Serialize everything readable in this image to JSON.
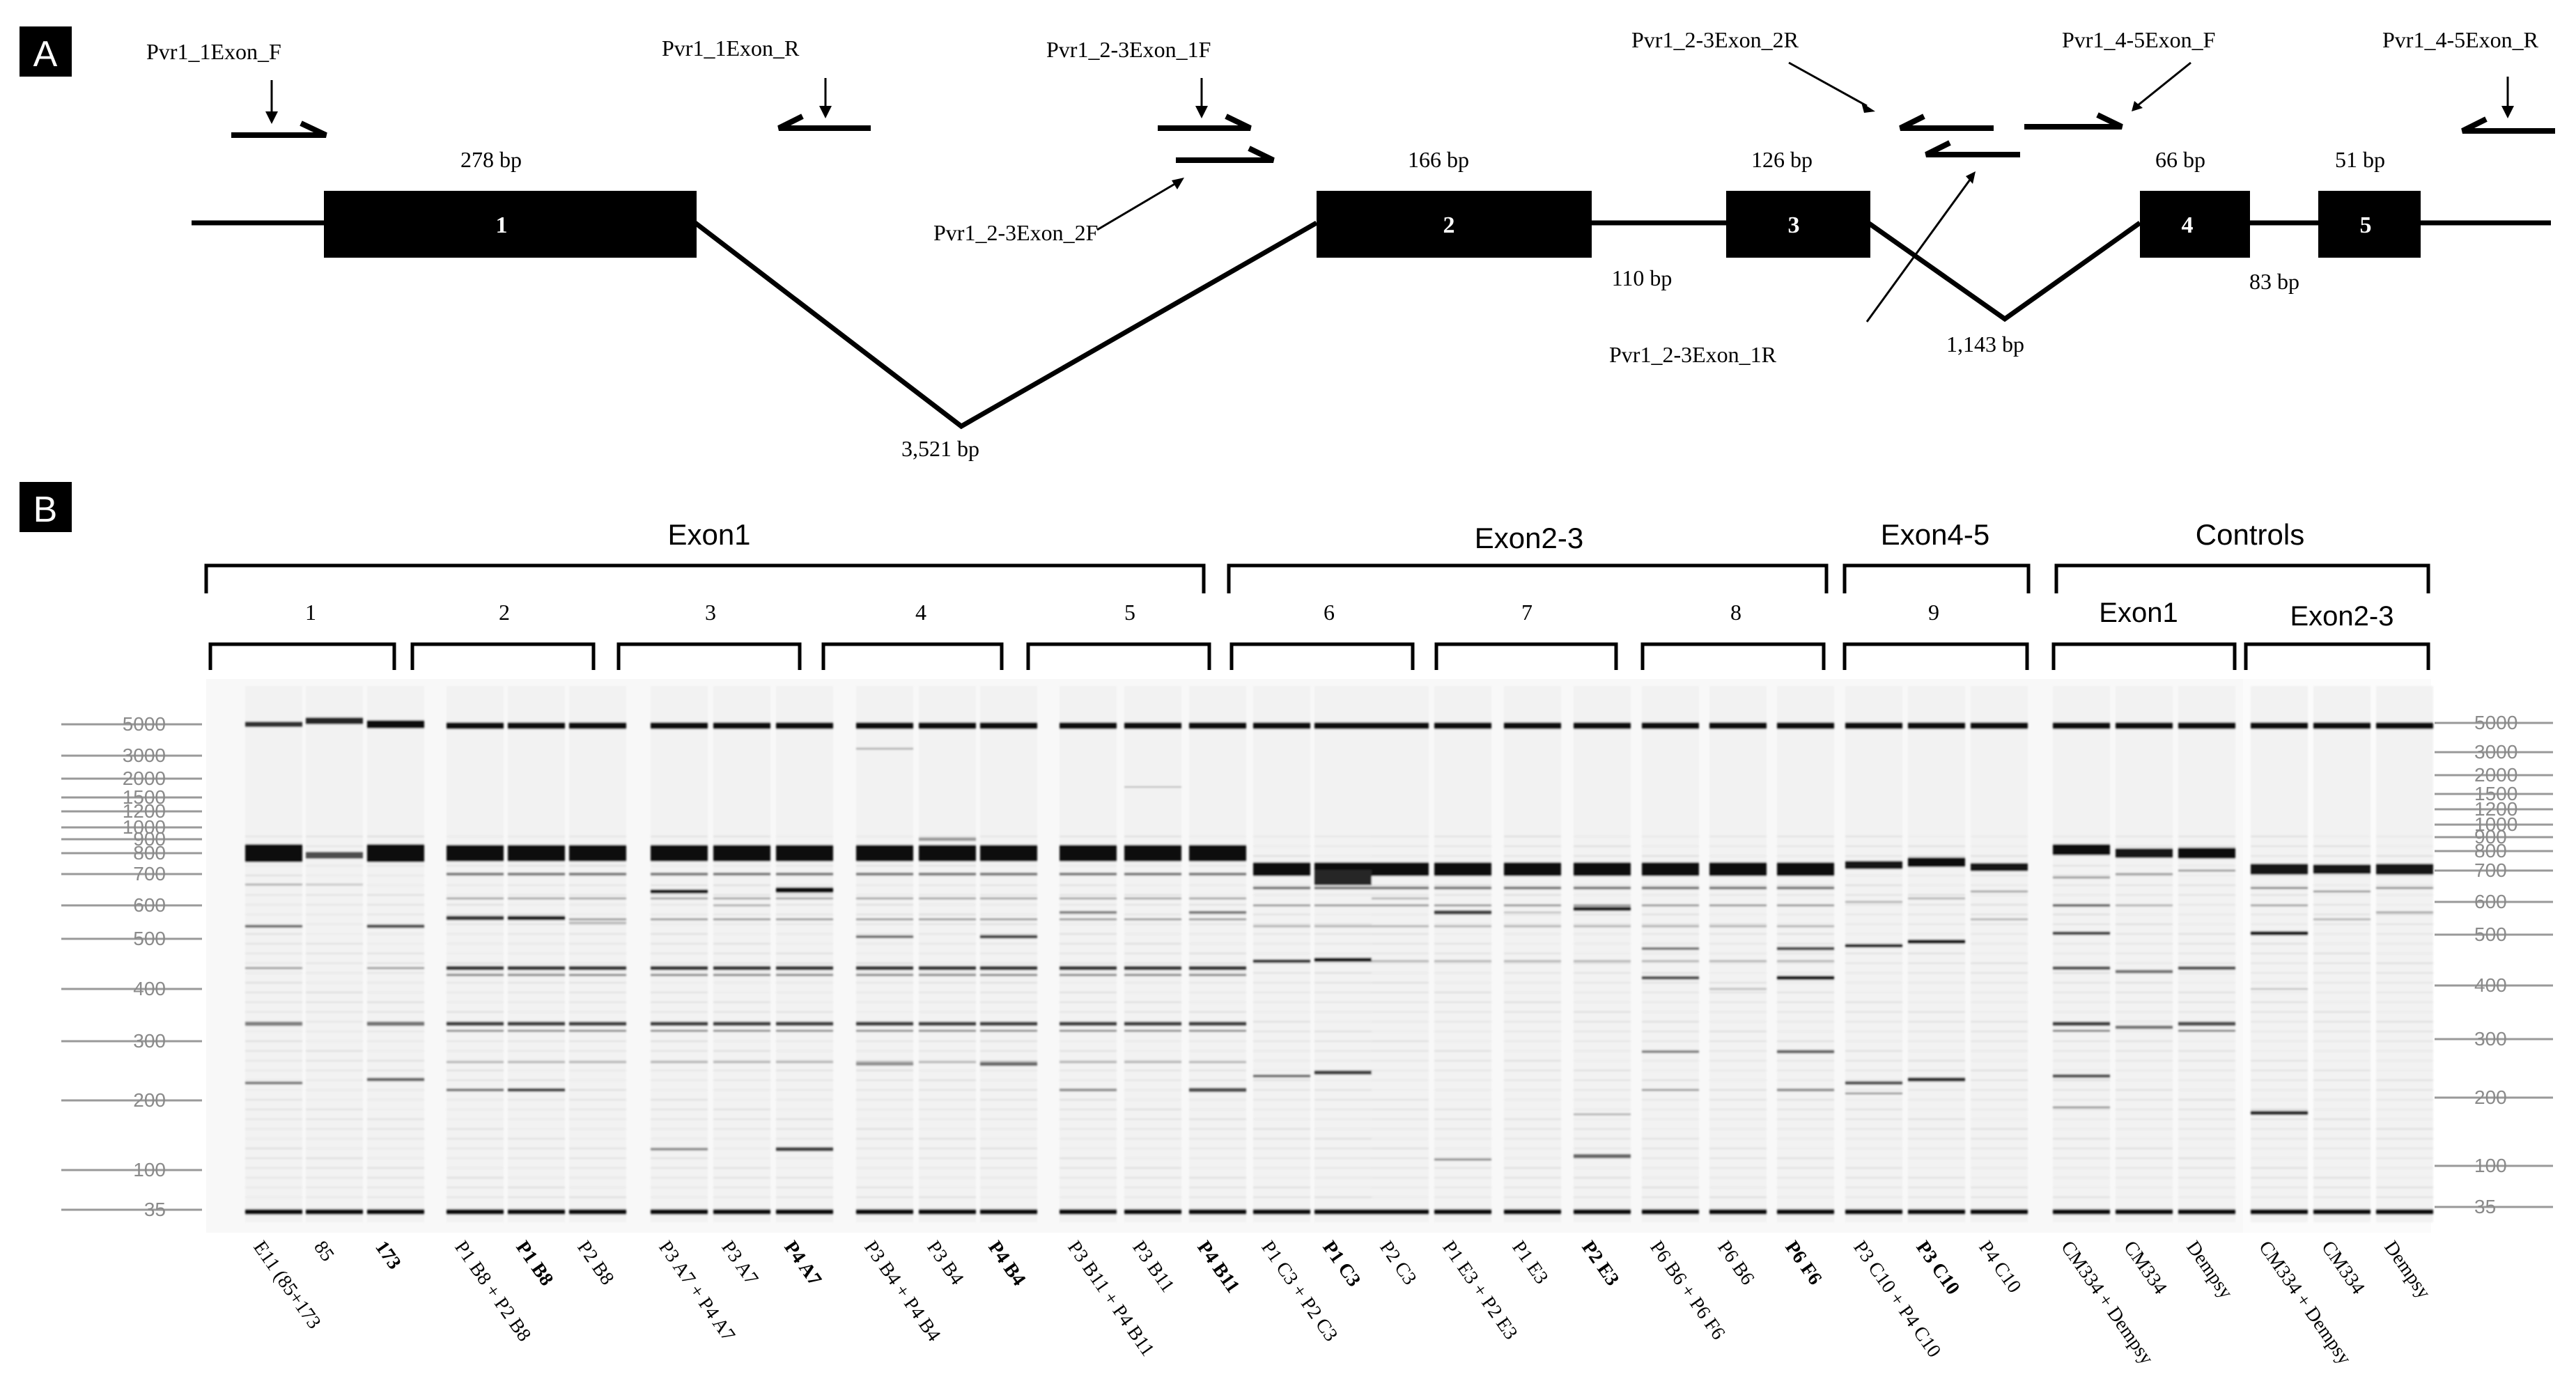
{
  "panel_a": {
    "label": "A",
    "primers": [
      {
        "name": "Pvr1_1Exon_F"
      },
      {
        "name": "Pvr1_1Exon_R"
      },
      {
        "name": "Pvr1_2-3Exon_1F"
      },
      {
        "name": "Pvr1_2-3Exon_2F"
      },
      {
        "name": "Pvr1_2-3Exon_2R"
      },
      {
        "name": "Pvr1_2-3Exon_1R"
      },
      {
        "name": "Pvr1_4-5Exon_F"
      },
      {
        "name": "Pvr1_4-5Exon_R"
      }
    ],
    "exons": [
      {
        "label": "1",
        "size": "278 bp"
      },
      {
        "label": "2",
        "size": "166 bp"
      },
      {
        "label": "3",
        "size": "126 bp"
      },
      {
        "label": "4",
        "size": "66 bp"
      },
      {
        "label": "5",
        "size": "51 bp"
      }
    ],
    "introns": [
      {
        "size": "3,521 bp"
      },
      {
        "size": "110 bp"
      },
      {
        "size": "1,143 bp"
      },
      {
        "size": "83 bp"
      }
    ]
  },
  "panel_b": {
    "label": "B",
    "groups": [
      {
        "label": "Exon1"
      },
      {
        "label": "Exon2-3"
      },
      {
        "label": "Exon4-5"
      },
      {
        "label": "Controls"
      }
    ],
    "subgroups": [
      "1",
      "2",
      "3",
      "4",
      "5",
      "6",
      "7",
      "8",
      "9",
      "Exon1",
      "Exon2-3"
    ],
    "ladder_labels": [
      "5000",
      "3000",
      "2000",
      "1500",
      "1200",
      "1000",
      "900",
      "800",
      "700",
      "600",
      "500",
      "400",
      "300",
      "200",
      "100",
      "35"
    ],
    "lanes": [
      {
        "label": "E11 (85+173",
        "bold": false
      },
      {
        "label": "85",
        "bold": false
      },
      {
        "label": "173",
        "bold": true
      },
      {
        "label": "P1 B8 + P2 B8",
        "bold": false
      },
      {
        "label": "P1 B8",
        "bold": true
      },
      {
        "label": "P2 B8",
        "bold": false
      },
      {
        "label": "P3 A7 + P4 A7",
        "bold": false
      },
      {
        "label": "P3 A7",
        "bold": false
      },
      {
        "label": "P4 A7",
        "bold": true
      },
      {
        "label": "P3 B4 + P4 B4",
        "bold": false
      },
      {
        "label": "P3 B4",
        "bold": false
      },
      {
        "label": "P4 B4",
        "bold": true
      },
      {
        "label": "P3 B11 + P4 B11",
        "bold": false
      },
      {
        "label": "P3 B11",
        "bold": false
      },
      {
        "label": "P4 B11",
        "bold": true
      },
      {
        "label": "P1 C3 + P2 C3",
        "bold": false
      },
      {
        "label": "P1 C3",
        "bold": true
      },
      {
        "label": "P2 C3",
        "bold": false
      },
      {
        "label": "P1 E3 + P2 E3",
        "bold": false
      },
      {
        "label": "P1 E3",
        "bold": false
      },
      {
        "label": "P2 E3",
        "bold": true
      },
      {
        "label": "P6 B6 + P6 F6",
        "bold": false
      },
      {
        "label": "P6 B6",
        "bold": false
      },
      {
        "label": "P6 F6",
        "bold": true
      },
      {
        "label": "P3 C10 + P4 C10",
        "bold": false
      },
      {
        "label": "P3 C10",
        "bold": true
      },
      {
        "label": "P4 C10",
        "bold": false
      },
      {
        "label": "CM334 + Dempsy",
        "bold": false
      },
      {
        "label": "CM334",
        "bold": false
      },
      {
        "label": "Dempsy",
        "bold": false
      },
      {
        "label": "CM334 + Dempsy",
        "bold": false
      },
      {
        "label": "CM334",
        "bold": false
      },
      {
        "label": "Dempsy",
        "bold": false
      }
    ]
  }
}
